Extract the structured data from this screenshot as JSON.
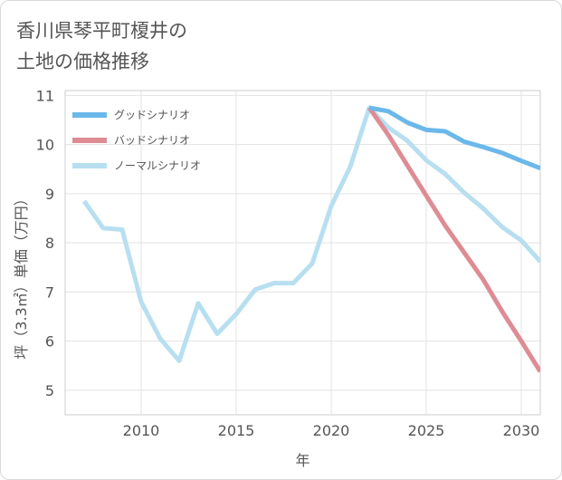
{
  "title_line1": "香川県琴平町榎井の",
  "title_line2": "土地の価格推移",
  "chart_data": {
    "type": "line",
    "xlabel": "年",
    "ylabel": "坪（3.3㎡）単価（万円）",
    "xlim": [
      2006,
      2031
    ],
    "ylim": [
      4.5,
      11.1
    ],
    "xticks": [
      2010,
      2015,
      2020,
      2025,
      2030
    ],
    "yticks": [
      5,
      6,
      7,
      8,
      9,
      10,
      11
    ],
    "grid": true,
    "legend_position": "top-left",
    "series": [
      {
        "name": "グッドシナリオ",
        "color": "#6bb8ea",
        "points": [
          [
            2022,
            10.75
          ],
          [
            2023,
            10.68
          ],
          [
            2024,
            10.45
          ],
          [
            2025,
            10.3
          ],
          [
            2026,
            10.27
          ],
          [
            2027,
            10.06
          ],
          [
            2028,
            9.95
          ],
          [
            2029,
            9.83
          ],
          [
            2030,
            9.67
          ],
          [
            2031,
            9.52
          ]
        ]
      },
      {
        "name": "バッドシナリオ",
        "color": "#de8c94",
        "points": [
          [
            2022,
            10.75
          ],
          [
            2023,
            10.2
          ],
          [
            2024,
            9.58
          ],
          [
            2025,
            8.96
          ],
          [
            2026,
            8.35
          ],
          [
            2027,
            7.8
          ],
          [
            2028,
            7.25
          ],
          [
            2029,
            6.6
          ],
          [
            2030,
            6.0
          ],
          [
            2031,
            5.38
          ]
        ]
      },
      {
        "name": "ノーマルシナリオ",
        "color": "#b7dff0",
        "points": [
          [
            2007,
            8.85
          ],
          [
            2008,
            8.3
          ],
          [
            2009,
            8.27
          ],
          [
            2010,
            6.8
          ],
          [
            2011,
            6.05
          ],
          [
            2012,
            5.6
          ],
          [
            2013,
            6.77
          ],
          [
            2014,
            6.15
          ],
          [
            2015,
            6.55
          ],
          [
            2016,
            7.05
          ],
          [
            2017,
            7.18
          ],
          [
            2018,
            7.18
          ],
          [
            2019,
            7.58
          ],
          [
            2020,
            8.75
          ],
          [
            2021,
            9.55
          ],
          [
            2022,
            10.75
          ],
          [
            2023,
            10.35
          ],
          [
            2024,
            10.08
          ],
          [
            2025,
            9.68
          ],
          [
            2026,
            9.4
          ],
          [
            2027,
            9.02
          ],
          [
            2028,
            8.7
          ],
          [
            2029,
            8.32
          ],
          [
            2030,
            8.05
          ],
          [
            2031,
            7.62
          ]
        ]
      }
    ]
  }
}
